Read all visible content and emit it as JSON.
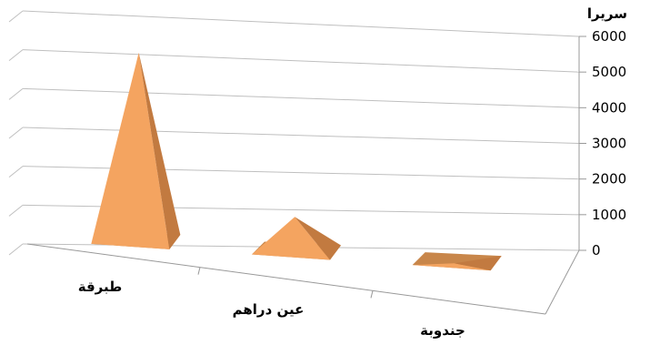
{
  "chart_data": {
    "type": "bar",
    "style": "3d-pyramid",
    "categories": [
      "طبرقة",
      "عين دراهم",
      "جندوبة"
    ],
    "series": [
      {
        "values": [
          5600,
          1100,
          50
        ]
      }
    ],
    "yunit": "سريرا",
    "ylim": [
      0,
      6000
    ],
    "yticks": [
      0,
      1000,
      2000,
      3000,
      4000,
      5000,
      6000
    ],
    "grid": true,
    "legend": "none",
    "color": "#F4A460"
  }
}
